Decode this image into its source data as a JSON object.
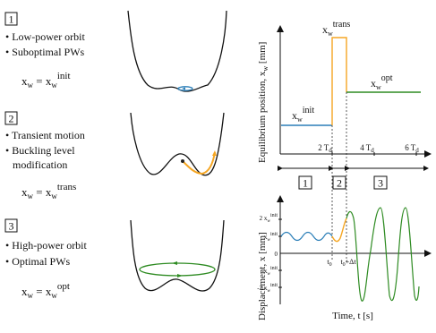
{
  "left": {
    "panels": [
      {
        "num": "1",
        "bullets": [
          "Low-power orbit",
          "Suboptimal PWs"
        ],
        "eq_lhs": "x",
        "eq_sub": "w",
        "eq_eq": " = x",
        "eq_sub2": "w",
        "eq_sup": "init"
      },
      {
        "num": "2",
        "bullets": [
          "Transient motion",
          "Buckling level",
          "modification"
        ],
        "eq_lhs": "x",
        "eq_sub": "w",
        "eq_eq": " = x",
        "eq_sub2": "w",
        "eq_sup": "trans"
      },
      {
        "num": "3",
        "bullets": [
          "High-power orbit",
          "Optimal PWs"
        ],
        "eq_lhs": "x",
        "eq_sub": "w",
        "eq_eq": " = x",
        "eq_sub2": "w",
        "eq_sup": "opt"
      }
    ]
  },
  "top_plot": {
    "ylabel": "Equilibrium position, x",
    "ylabel_sub": "w",
    "ylabel_unit": " [mm]",
    "x_ticks": [
      {
        "n": "2 T",
        "s": "d"
      },
      {
        "n": "4 T",
        "s": "d"
      },
      {
        "n": "6 T",
        "s": "d"
      }
    ],
    "labels": {
      "init_x": "x",
      "init_sub": "w",
      "init_sup": "init",
      "trans_x": "x",
      "trans_sub": "w",
      "trans_sup": "trans",
      "opt_x": "x",
      "opt_sub": "w",
      "opt_sup": "opt"
    },
    "colors": {
      "init": "#2c7fb8",
      "trans": "#f5a623",
      "opt": "#2e8b22"
    }
  },
  "phases": [
    "1",
    "2",
    "3"
  ],
  "bottom_plot": {
    "ylabel": "Displacement, x [mm]",
    "xlabel": "Time, t [s]",
    "y_ticks": [
      {
        "n": "2 x",
        "s": "w",
        "p": "init"
      },
      {
        "n": "x",
        "s": "w",
        "p": "init"
      },
      {
        "n": "0",
        "s": "",
        "p": ""
      },
      {
        "n": "-x",
        "s": "w",
        "p": "init"
      },
      {
        "n": "-2 x",
        "s": "w",
        "p": "init"
      }
    ],
    "t0": "t",
    "t0_sub": "0",
    "t1": "t",
    "t1_sub": "0",
    "t1_tail": "+Δt"
  }
}
